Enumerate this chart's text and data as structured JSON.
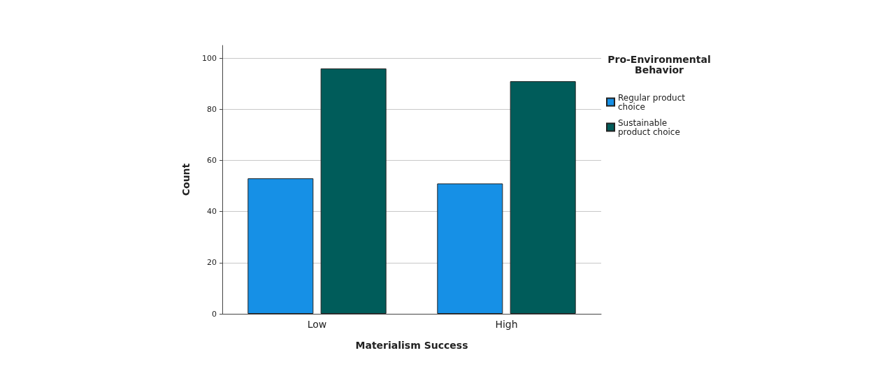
{
  "chart_data": {
    "type": "bar",
    "xlabel": "Materialism Success",
    "ylabel": "Count",
    "legend_title": "Pro-Environmental Behavior",
    "categories": [
      "Low",
      "High"
    ],
    "series": [
      {
        "name": "Regular product choice",
        "color": "#1690e6",
        "values": [
          53,
          51
        ]
      },
      {
        "name": "Sustainable product choice",
        "color": "#005c5a",
        "values": [
          96,
          91
        ]
      }
    ],
    "ylim": [
      0,
      105
    ],
    "yticks": [
      0,
      20,
      40,
      60,
      80,
      100
    ],
    "grid": "y",
    "legend": "right"
  }
}
